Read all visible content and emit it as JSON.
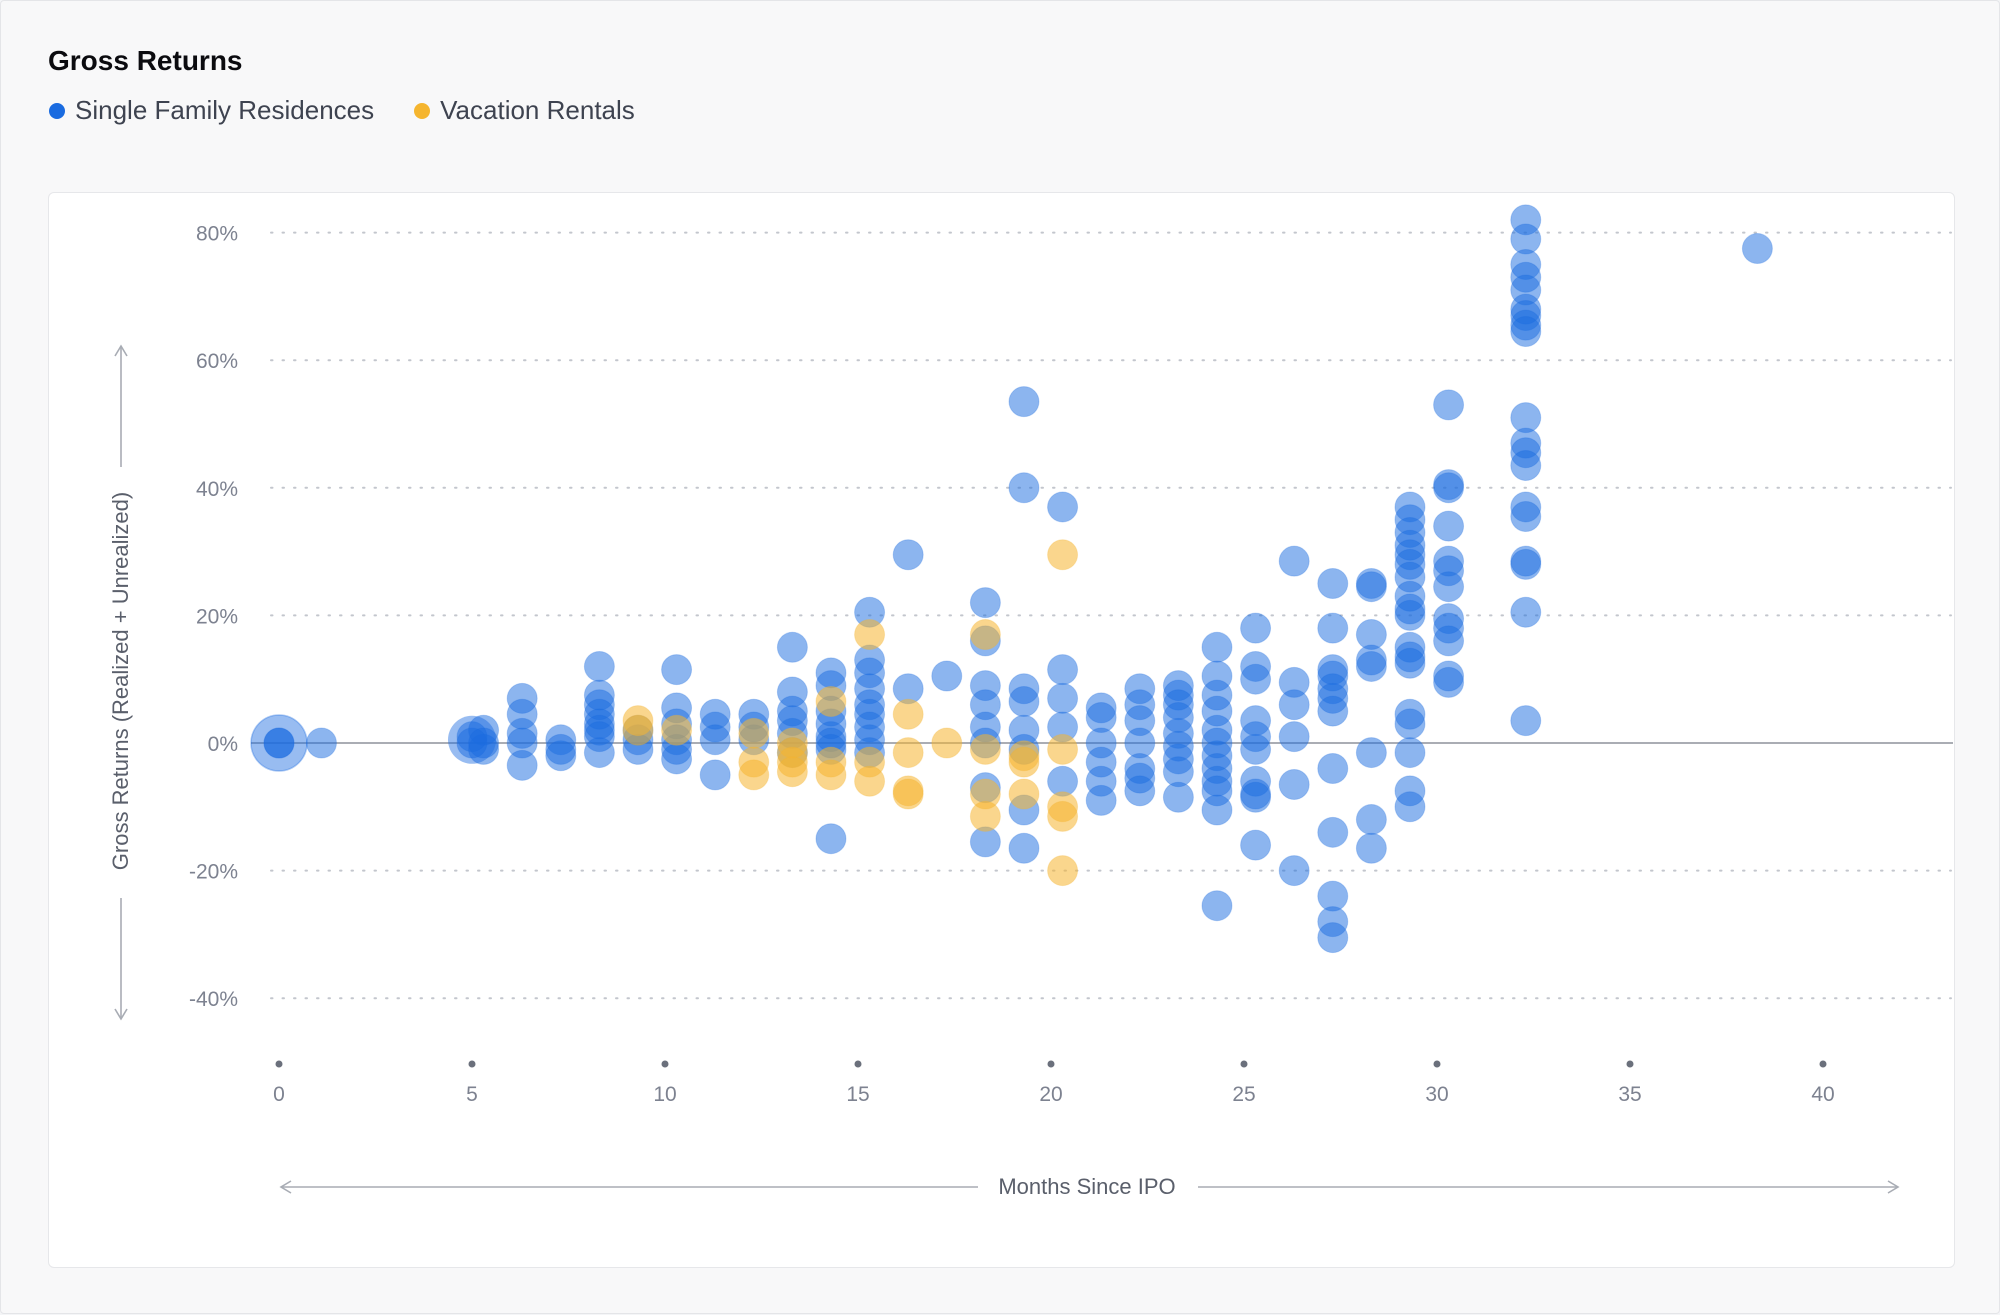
{
  "colors": {
    "single_family": "#1a6be0",
    "vacation": "#f5b52f",
    "axis": "#7d8290",
    "grid": "#c3c6cd"
  },
  "chart_data": {
    "type": "scatter",
    "title": "Gross Returns",
    "xlabel": "Months Since IPO",
    "ylabel": "Gross Returns (Realized + Unrealized)",
    "xlim": [
      0,
      40
    ],
    "ylim": [
      -40,
      80
    ],
    "x_ticks": [
      "0",
      "5",
      "10",
      "15",
      "20",
      "25",
      "30",
      "35",
      "40"
    ],
    "y_ticks": [
      "80%",
      "60%",
      "40%",
      "20%",
      "0%",
      "-20%",
      "-40%"
    ],
    "grid": "horizontal dotted",
    "legend_position": "top-left",
    "series": [
      {
        "name": "Single Family Residences",
        "points": [
          [
            0,
            0
          ],
          [
            0,
            0
          ],
          [
            1.1,
            0
          ],
          [
            5,
            1
          ],
          [
            5,
            0
          ],
          [
            5.3,
            2
          ],
          [
            5.3,
            0
          ],
          [
            5.3,
            -1
          ],
          [
            6.3,
            7
          ],
          [
            6.3,
            4.5
          ],
          [
            6.3,
            1.5
          ],
          [
            6.3,
            0
          ],
          [
            6.3,
            -3.5
          ],
          [
            7.3,
            0.5
          ],
          [
            7.3,
            -1
          ],
          [
            7.3,
            -2
          ],
          [
            8.3,
            12
          ],
          [
            8.3,
            7.5
          ],
          [
            8.3,
            6
          ],
          [
            8.3,
            4.5
          ],
          [
            8.3,
            3
          ],
          [
            8.3,
            2
          ],
          [
            8.3,
            1
          ],
          [
            8.3,
            -1.5
          ],
          [
            9.3,
            2
          ],
          [
            9.3,
            0.5
          ],
          [
            9.3,
            -1
          ],
          [
            10.3,
            11.5
          ],
          [
            10.3,
            5.5
          ],
          [
            10.3,
            3
          ],
          [
            10.3,
            0.5
          ],
          [
            10.3,
            -1
          ],
          [
            10.3,
            -2.5
          ],
          [
            11.3,
            4.5
          ],
          [
            11.3,
            2.5
          ],
          [
            11.3,
            0.5
          ],
          [
            11.3,
            -5
          ],
          [
            12.3,
            4.5
          ],
          [
            12.3,
            2.5
          ],
          [
            12.3,
            0.5
          ],
          [
            13.3,
            15
          ],
          [
            13.3,
            8
          ],
          [
            13.3,
            5
          ],
          [
            13.3,
            3.5
          ],
          [
            13.3,
            1.5
          ],
          [
            13.3,
            -1.5
          ],
          [
            14.3,
            11
          ],
          [
            14.3,
            9
          ],
          [
            14.3,
            5
          ],
          [
            14.3,
            3
          ],
          [
            14.3,
            1
          ],
          [
            14.3,
            0
          ],
          [
            14.3,
            -1
          ],
          [
            14.3,
            -15
          ],
          [
            15.3,
            20.5
          ],
          [
            15.3,
            13
          ],
          [
            15.3,
            11
          ],
          [
            15.3,
            8.5
          ],
          [
            15.3,
            6
          ],
          [
            15.3,
            4.5
          ],
          [
            15.3,
            2.5
          ],
          [
            15.3,
            0.5
          ],
          [
            15.3,
            -1.5
          ],
          [
            16.3,
            29.5
          ],
          [
            16.3,
            8.5
          ],
          [
            17.3,
            10.5
          ],
          [
            18.3,
            22
          ],
          [
            18.3,
            16
          ],
          [
            18.3,
            9
          ],
          [
            18.3,
            6
          ],
          [
            18.3,
            2.5
          ],
          [
            18.3,
            0
          ],
          [
            18.3,
            -7
          ],
          [
            18.3,
            -15.5
          ],
          [
            19.3,
            53.5
          ],
          [
            19.3,
            40
          ],
          [
            19.3,
            8.5
          ],
          [
            19.3,
            6.5
          ],
          [
            19.3,
            2
          ],
          [
            19.3,
            -1
          ],
          [
            19.3,
            -10.5
          ],
          [
            19.3,
            -16.5
          ],
          [
            20.3,
            37
          ],
          [
            20.3,
            11.5
          ],
          [
            20.3,
            7
          ],
          [
            20.3,
            2.5
          ],
          [
            20.3,
            -6
          ],
          [
            21.3,
            5.5
          ],
          [
            21.3,
            4
          ],
          [
            21.3,
            0
          ],
          [
            21.3,
            -3
          ],
          [
            21.3,
            -6
          ],
          [
            21.3,
            -9
          ],
          [
            22.3,
            8.5
          ],
          [
            22.3,
            6
          ],
          [
            22.3,
            3.5
          ],
          [
            22.3,
            0
          ],
          [
            22.3,
            -4
          ],
          [
            22.3,
            -5.5
          ],
          [
            22.3,
            -7.5
          ],
          [
            23.3,
            9
          ],
          [
            23.3,
            7.5
          ],
          [
            23.3,
            6
          ],
          [
            23.3,
            4
          ],
          [
            23.3,
            1.5
          ],
          [
            23.3,
            -0.5
          ],
          [
            23.3,
            -2.5
          ],
          [
            23.3,
            -4.5
          ],
          [
            23.3,
            -8.5
          ],
          [
            24.3,
            15
          ],
          [
            24.3,
            10.5
          ],
          [
            24.3,
            7.5
          ],
          [
            24.3,
            5
          ],
          [
            24.3,
            2
          ],
          [
            24.3,
            0
          ],
          [
            24.3,
            -2
          ],
          [
            24.3,
            -4
          ],
          [
            24.3,
            -6
          ],
          [
            24.3,
            -7.5
          ],
          [
            24.3,
            -10.5
          ],
          [
            24.3,
            -25.5
          ],
          [
            25.3,
            18
          ],
          [
            25.3,
            12
          ],
          [
            25.3,
            10
          ],
          [
            25.3,
            3.5
          ],
          [
            25.3,
            1
          ],
          [
            25.3,
            -1
          ],
          [
            25.3,
            -6
          ],
          [
            25.3,
            -8
          ],
          [
            25.3,
            -8.5
          ],
          [
            25.3,
            -16
          ],
          [
            26.3,
            28.5
          ],
          [
            26.3,
            9.5
          ],
          [
            26.3,
            6
          ],
          [
            26.3,
            1
          ],
          [
            26.3,
            -6.5
          ],
          [
            26.3,
            -20
          ],
          [
            27.3,
            25
          ],
          [
            27.3,
            18
          ],
          [
            27.3,
            11.5
          ],
          [
            27.3,
            10.5
          ],
          [
            27.3,
            8.5
          ],
          [
            27.3,
            7
          ],
          [
            27.3,
            5
          ],
          [
            27.3,
            -4
          ],
          [
            27.3,
            -14
          ],
          [
            27.3,
            -24
          ],
          [
            27.3,
            -28
          ],
          [
            27.3,
            -30.5
          ],
          [
            28.3,
            25
          ],
          [
            28.3,
            24.5
          ],
          [
            28.3,
            17
          ],
          [
            28.3,
            13
          ],
          [
            28.3,
            12
          ],
          [
            28.3,
            -1.5
          ],
          [
            28.3,
            -12
          ],
          [
            28.3,
            -16.5
          ],
          [
            29.3,
            37
          ],
          [
            29.3,
            35
          ],
          [
            29.3,
            33
          ],
          [
            29.3,
            31
          ],
          [
            29.3,
            29.5
          ],
          [
            29.3,
            28
          ],
          [
            29.3,
            26
          ],
          [
            29.3,
            23
          ],
          [
            29.3,
            21
          ],
          [
            29.3,
            20
          ],
          [
            29.3,
            15
          ],
          [
            29.3,
            13.5
          ],
          [
            29.3,
            12.5
          ],
          [
            29.3,
            4.5
          ],
          [
            29.3,
            3
          ],
          [
            29.3,
            -1.5
          ],
          [
            29.3,
            -7.5
          ],
          [
            29.3,
            -10
          ],
          [
            30.3,
            53
          ],
          [
            30.3,
            40.5
          ],
          [
            30.3,
            40
          ],
          [
            30.3,
            34
          ],
          [
            30.3,
            28.5
          ],
          [
            30.3,
            27
          ],
          [
            30.3,
            24.5
          ],
          [
            30.3,
            19.5
          ],
          [
            30.3,
            18
          ],
          [
            30.3,
            16
          ],
          [
            30.3,
            10.5
          ],
          [
            30.3,
            9.5
          ],
          [
            32.3,
            82
          ],
          [
            32.3,
            79
          ],
          [
            32.3,
            75
          ],
          [
            32.3,
            73
          ],
          [
            32.3,
            71
          ],
          [
            32.3,
            68
          ],
          [
            32.3,
            67
          ],
          [
            32.3,
            65.5
          ],
          [
            32.3,
            64.5
          ],
          [
            32.3,
            51
          ],
          [
            32.3,
            47
          ],
          [
            32.3,
            45.5
          ],
          [
            32.3,
            43.5
          ],
          [
            32.3,
            37
          ],
          [
            32.3,
            35.5
          ],
          [
            32.3,
            28.5
          ],
          [
            32.3,
            28
          ],
          [
            32.3,
            20.5
          ],
          [
            32.3,
            3.5
          ],
          [
            38.3,
            77.5
          ]
        ]
      },
      {
        "name": "Vacation Rentals",
        "points": [
          [
            9.3,
            3.5
          ],
          [
            9.3,
            2
          ],
          [
            10.3,
            2
          ],
          [
            12.3,
            1.5
          ],
          [
            12.3,
            -3
          ],
          [
            12.3,
            -5
          ],
          [
            13.3,
            0
          ],
          [
            13.3,
            -1.5
          ],
          [
            13.3,
            -3
          ],
          [
            13.3,
            -4.5
          ],
          [
            14.3,
            6.5
          ],
          [
            14.3,
            -3
          ],
          [
            14.3,
            -5
          ],
          [
            15.3,
            17
          ],
          [
            15.3,
            -3
          ],
          [
            15.3,
            -6
          ],
          [
            16.3,
            4.5
          ],
          [
            16.3,
            -1.5
          ],
          [
            16.3,
            -7.5
          ],
          [
            16.3,
            -8
          ],
          [
            17.3,
            0
          ],
          [
            18.3,
            17
          ],
          [
            18.3,
            -1
          ],
          [
            18.3,
            -8
          ],
          [
            18.3,
            -11.5
          ],
          [
            19.3,
            -2
          ],
          [
            19.3,
            -3
          ],
          [
            19.3,
            -8
          ],
          [
            20.3,
            29.5
          ],
          [
            20.3,
            -1
          ],
          [
            20.3,
            -10
          ],
          [
            20.3,
            -11.5
          ],
          [
            20.3,
            -20
          ]
        ]
      }
    ]
  }
}
